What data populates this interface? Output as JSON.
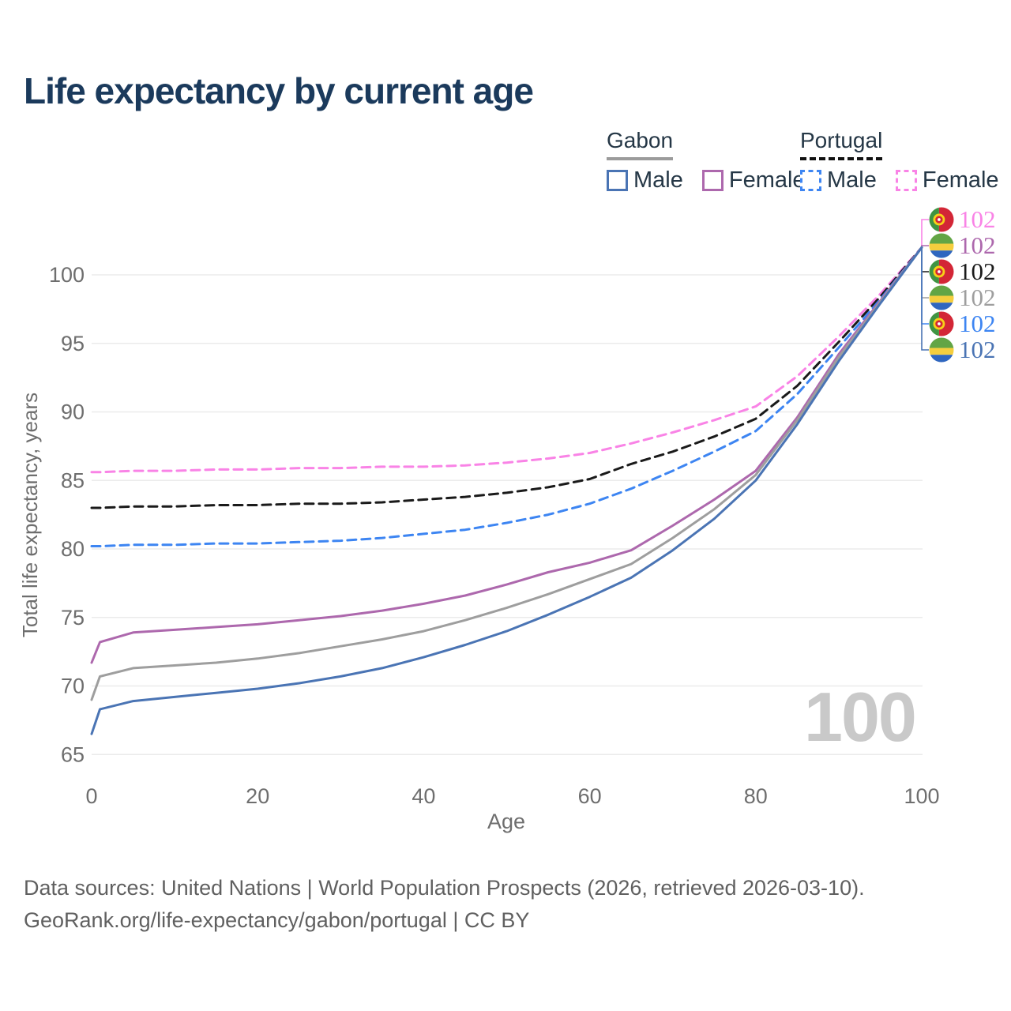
{
  "title": "Life expectancy by current age",
  "watermark_hover_age": "100",
  "colors": {
    "title_text": "#1b3a5c",
    "legend_text": "#253746",
    "grid": "#ebebeb",
    "axis_text": "#6e6e6e",
    "watermark": "#c9c9c9",
    "footer_text": "#606060"
  },
  "legend": {
    "groups": [
      {
        "country": "Gabon",
        "line_style": "solid",
        "underline_color": "#9b9b9b",
        "items": [
          {
            "label": "Male",
            "color": "#4a74b4"
          },
          {
            "label": "Female",
            "color": "#ad68ad"
          }
        ]
      },
      {
        "country": "Portugal",
        "line_style": "dashed",
        "underline_color": "#111111",
        "items": [
          {
            "label": "Male",
            "color": "#3d85f2"
          },
          {
            "label": "Female",
            "color": "#f983e6"
          }
        ]
      }
    ]
  },
  "chart_data": {
    "type": "line",
    "title": "Life expectancy by current age",
    "xlabel": "Age",
    "ylabel": "Total life expectancy, years",
    "xlim": [
      0,
      100
    ],
    "ylim": [
      65,
      102
    ],
    "xticks": [
      "0",
      "20",
      "40",
      "60",
      "80",
      "100"
    ],
    "xtick_values": [
      0,
      20,
      40,
      60,
      80,
      100
    ],
    "yticks": [
      "65",
      "70",
      "75",
      "80",
      "85",
      "90",
      "95",
      "100"
    ],
    "ytick_values": [
      65,
      70,
      75,
      80,
      85,
      90,
      95,
      100
    ],
    "grid": "horizontal",
    "x": [
      0,
      1,
      5,
      10,
      15,
      20,
      25,
      30,
      35,
      40,
      45,
      50,
      55,
      60,
      65,
      70,
      75,
      80,
      85,
      90,
      95,
      100
    ],
    "series": [
      {
        "name": "Portugal Female",
        "country": "Portugal",
        "sex": "Female",
        "dash": "dashed",
        "color": "#f983e6",
        "values": [
          85.6,
          85.6,
          85.7,
          85.7,
          85.8,
          85.8,
          85.9,
          85.9,
          86.0,
          86.0,
          86.1,
          86.3,
          86.6,
          87.0,
          87.7,
          88.5,
          89.4,
          90.4,
          92.6,
          95.5,
          98.6,
          102
        ]
      },
      {
        "name": "Portugal",
        "country": "Portugal",
        "sex": "Total",
        "dash": "dashed",
        "color": "#1a1a1a",
        "values": [
          83.0,
          83.0,
          83.1,
          83.1,
          83.2,
          83.2,
          83.3,
          83.3,
          83.4,
          83.6,
          83.8,
          84.1,
          84.5,
          85.1,
          86.2,
          87.1,
          88.2,
          89.5,
          91.9,
          95.1,
          98.4,
          102
        ]
      },
      {
        "name": "Portugal Male",
        "country": "Portugal",
        "sex": "Male",
        "dash": "dashed",
        "color": "#3d85f2",
        "values": [
          80.2,
          80.2,
          80.3,
          80.3,
          80.4,
          80.4,
          80.5,
          80.6,
          80.8,
          81.1,
          81.4,
          81.9,
          82.5,
          83.3,
          84.4,
          85.7,
          87.1,
          88.6,
          91.3,
          94.7,
          98.2,
          102
        ]
      },
      {
        "name": "Gabon Female",
        "country": "Gabon",
        "sex": "Female",
        "dash": "solid",
        "color": "#ad68ad",
        "values": [
          71.7,
          73.2,
          73.9,
          74.1,
          74.3,
          74.5,
          74.8,
          75.1,
          75.5,
          76.0,
          76.6,
          77.4,
          78.3,
          79.0,
          79.9,
          81.7,
          83.6,
          85.7,
          89.6,
          94.2,
          98.1,
          102
        ]
      },
      {
        "name": "Gabon",
        "country": "Gabon",
        "sex": "Total",
        "dash": "solid",
        "color": "#9e9e9e",
        "values": [
          69.0,
          70.7,
          71.3,
          71.5,
          71.7,
          72.0,
          72.4,
          72.9,
          73.4,
          74.0,
          74.8,
          75.7,
          76.7,
          77.8,
          78.9,
          80.8,
          82.9,
          85.4,
          89.4,
          94.0,
          98.0,
          102
        ]
      },
      {
        "name": "Gabon Male",
        "country": "Gabon",
        "sex": "Male",
        "dash": "solid",
        "color": "#4a74b4",
        "values": [
          66.5,
          68.3,
          68.9,
          69.2,
          69.5,
          69.8,
          70.2,
          70.7,
          71.3,
          72.1,
          73.0,
          74.0,
          75.2,
          76.5,
          77.9,
          79.9,
          82.2,
          85.0,
          89.1,
          93.7,
          97.9,
          102
        ]
      }
    ],
    "end_labels": [
      {
        "country": "Portugal",
        "sex": "Female",
        "flag": "pt",
        "value": "102",
        "color": "#f983e6"
      },
      {
        "country": "Gabon",
        "sex": "Female",
        "flag": "ga",
        "value": "102",
        "color": "#ad68ad"
      },
      {
        "country": "Portugal",
        "sex": "Total",
        "flag": "pt",
        "value": "102",
        "color": "#1a1a1a"
      },
      {
        "country": "Gabon",
        "sex": "Total",
        "flag": "ga",
        "value": "102",
        "color": "#9e9e9e"
      },
      {
        "country": "Portugal",
        "sex": "Male",
        "flag": "pt",
        "value": "102",
        "color": "#3d85f2"
      },
      {
        "country": "Gabon",
        "sex": "Male",
        "flag": "ga",
        "value": "102",
        "color": "#4a74b4"
      }
    ],
    "flag_colors": {
      "pt": {
        "green": "#3f9442",
        "red": "#d32636",
        "yellow": "#f7d117"
      },
      "ga": {
        "green": "#62a545",
        "yellow": "#f5ce3e",
        "blue": "#2f66bf"
      }
    }
  },
  "footer": {
    "line1": "Data sources: United Nations | World Population Prospects (2026, retrieved 2026-03-10).",
    "line2": "GeoRank.org/life-expectancy/gabon/portugal | CC BY"
  }
}
